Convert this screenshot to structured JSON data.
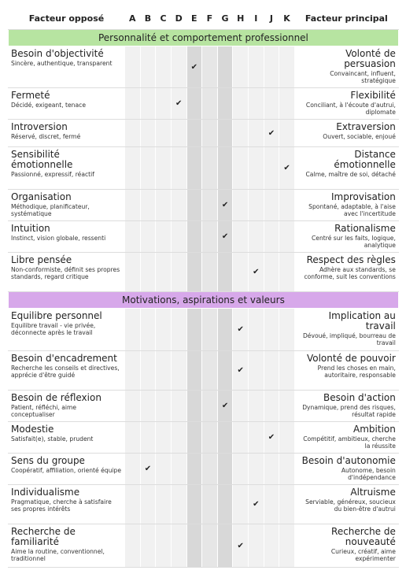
{
  "header": {
    "left": "Facteur opposé",
    "columns": [
      "A",
      "B",
      "C",
      "D",
      "E",
      "F",
      "G",
      "H",
      "I",
      "J",
      "K"
    ],
    "right": "Facteur principal"
  },
  "sections": [
    {
      "title": "Personnalité et comportement professionnel",
      "color": "#b7e4a1",
      "rows": [
        {
          "left_title": "Besoin d'objectivité",
          "left_desc": "Sincère, authentique, transparent",
          "check": "E",
          "right_title": "Volonté de persuasion",
          "right_desc": "Convaincant, influent, stratégique"
        },
        {
          "left_title": "Fermeté",
          "left_desc": "Décidé, exigeant, tenace",
          "check": "D",
          "right_title": "Flexibilité",
          "right_desc": "Conciliant, à l'écoute d'autrui, diplomate"
        },
        {
          "left_title": "Introversion",
          "left_desc": "Réservé, discret, fermé",
          "check": "J",
          "right_title": "Extraversion",
          "right_desc": "Ouvert, sociable, enjoué"
        },
        {
          "left_title": "Sensibilité émotionnelle",
          "left_desc": "Passionné, expressif, réactif",
          "check": "K",
          "right_title": "Distance émotionnelle",
          "right_desc": "Calme, maître de soi, détaché"
        },
        {
          "left_title": "Organisation",
          "left_desc": "Méthodique, planificateur, systématique",
          "check": "G",
          "right_title": "Improvisation",
          "right_desc": "Spontané, adaptable, à l'aise avec l'incertitude"
        },
        {
          "left_title": "Intuition",
          "left_desc": "Instinct, vision globale, ressenti",
          "check": "G",
          "right_title": "Rationalisme",
          "right_desc": "Centré sur les faits, logique, analytique"
        },
        {
          "left_title": "Libre pensée",
          "left_desc": "Non-conformiste, définit ses propres standards, regard critique",
          "check": "I",
          "right_title": "Respect des règles",
          "right_desc": "Adhère aux standards, se conforme, suit les conventions"
        }
      ]
    },
    {
      "title": "Motivations, aspirations et valeurs",
      "color": "#d7a8ea",
      "rows": [
        {
          "left_title": "Equilibre personnel",
          "left_desc": "Equilibre travail - vie privée, déconnecte après le travail",
          "check": "H",
          "right_title": "Implication au travail",
          "right_desc": "Dévoué, impliqué, bourreau de travail"
        },
        {
          "left_title": "Besoin d'encadrement",
          "left_desc": "Recherche les conseils et directives, apprécie d'être guidé",
          "check": "H",
          "right_title": "Volonté de pouvoir",
          "right_desc": "Prend les choses en main, autoritaire, responsable"
        },
        {
          "left_title": "Besoin de réflexion",
          "left_desc": "Patient, réfléchi, aime conceptualiser",
          "check": "G",
          "right_title": "Besoin d'action",
          "right_desc": "Dynamique, prend des risques, résultat rapide"
        },
        {
          "left_title": "Modestie",
          "left_desc": "Satisfait(e), stable, prudent",
          "check": "J",
          "right_title": "Ambition",
          "right_desc": "Compétitif, ambitieux, cherche la réussite"
        },
        {
          "left_title": "Sens du groupe",
          "left_desc": "Coopératif, affiliation, orienté équipe",
          "check": "B",
          "right_title": "Besoin d'autonomie",
          "right_desc": "Autonome, besoin d'indépendance"
        },
        {
          "left_title": "Individualisme",
          "left_desc": "Pragmatique, cherche à satisfaire ses propres intérêts",
          "check": "I",
          "right_title": "Altruisme",
          "right_desc": "Serviable, généreux, soucieux du bien-être d'autrui"
        },
        {
          "left_title": "Recherche de familiarité",
          "left_desc": "Aime la routine, conventionnel, traditionnel",
          "check": "H",
          "right_title": "Recherche de nouveauté",
          "right_desc": "Curieux, créatif, aime expérimenter"
        }
      ]
    }
  ]
}
